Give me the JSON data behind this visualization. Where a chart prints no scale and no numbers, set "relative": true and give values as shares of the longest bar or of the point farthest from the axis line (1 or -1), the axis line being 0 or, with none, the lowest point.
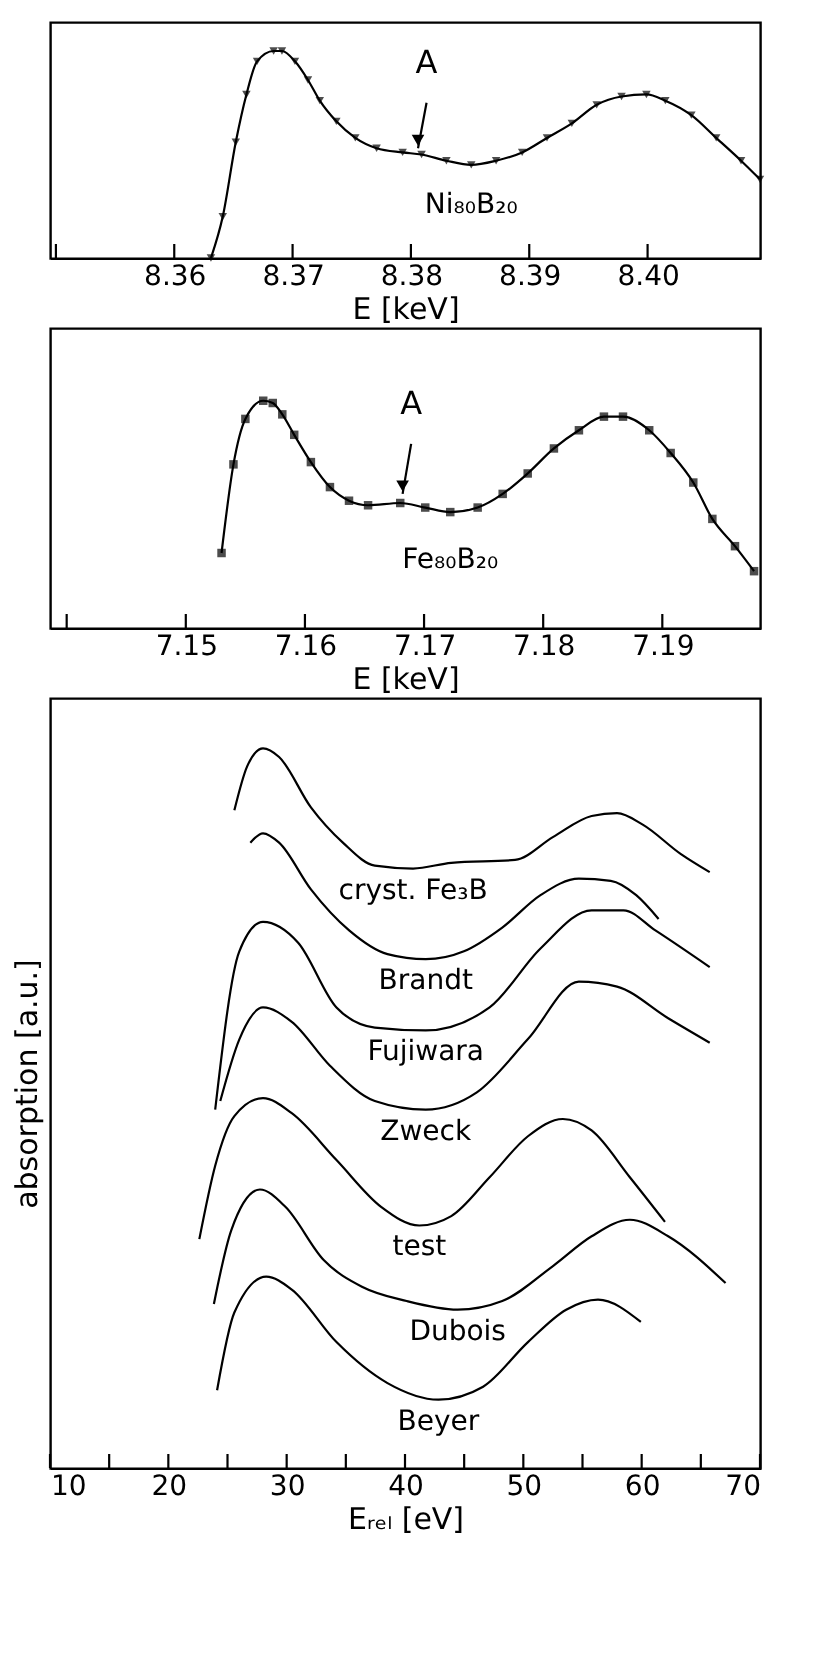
{
  "chart_data": [
    {
      "type": "line",
      "relative": true,
      "marker": "triangle",
      "grid": false,
      "legend": false,
      "xlabel": "E  [keV]",
      "xlim": [
        8.3495,
        8.4095
      ],
      "xticks": [
        {
          "value": 8.35,
          "label": null
        },
        8.36,
        8.37,
        8.38,
        8.39,
        {
          "value": 8.4,
          "label": "8.40"
        }
      ],
      "annotations": [
        {
          "text": "A",
          "x": 8.3806,
          "y": 0.53
        }
      ],
      "series": [
        {
          "name": "Ni₈₀B₂₀",
          "color": "#000000",
          "x": [
            8.3631,
            8.3641,
            8.3652,
            8.3661,
            8.367,
            8.3684,
            8.3691,
            8.3702,
            8.3713,
            8.3723,
            8.3737,
            8.3753,
            8.3771,
            8.3793,
            8.3809,
            8.383,
            8.3851,
            8.3872,
            8.3894,
            8.3915,
            8.3936,
            8.3957,
            8.3978,
            8.3999,
            8.4015,
            8.4037,
            8.4058,
            8.4079,
            8.4095
          ],
          "values": [
            0,
            0.2,
            0.56,
            0.79,
            0.95,
            1.0,
            1.0,
            0.95,
            0.86,
            0.76,
            0.66,
            0.58,
            0.53,
            0.51,
            0.5,
            0.47,
            0.45,
            0.47,
            0.51,
            0.58,
            0.65,
            0.74,
            0.78,
            0.79,
            0.76,
            0.69,
            0.58,
            0.47,
            0.38
          ]
        }
      ]
    },
    {
      "type": "line",
      "relative": true,
      "marker": "square",
      "grid": false,
      "legend": false,
      "xlabel": "E [keV]",
      "xlim": [
        7.1386,
        7.1982
      ],
      "xticks": [
        {
          "value": 7.14,
          "label": null
        },
        7.15,
        7.16,
        7.17,
        7.18,
        7.19
      ],
      "annotations": [
        {
          "text": "A",
          "x": 7.1682,
          "y": 0.59
        }
      ],
      "series": [
        {
          "name": "Fe₈₀B₂₀",
          "color": "#000000",
          "x": [
            7.153,
            7.154,
            7.155,
            7.1565,
            7.1573,
            7.1581,
            7.1591,
            7.1605,
            7.1621,
            7.1637,
            7.1653,
            7.168,
            7.1701,
            7.1722,
            7.1745,
            7.1766,
            7.1787,
            7.1809,
            7.183,
            7.1851,
            7.1867,
            7.1889,
            7.1907,
            7.1926,
            7.1942,
            7.1961,
            7.1977
          ],
          "values": [
            0.33,
            0.72,
            0.92,
            1.0,
            0.99,
            0.94,
            0.85,
            0.73,
            0.62,
            0.56,
            0.54,
            0.55,
            0.53,
            0.51,
            0.53,
            0.59,
            0.68,
            0.79,
            0.87,
            0.93,
            0.93,
            0.87,
            0.77,
            0.64,
            0.48,
            0.36,
            0.25
          ]
        }
      ]
    },
    {
      "type": "line",
      "relative": true,
      "marker": "none",
      "grid": false,
      "legend": false,
      "xlabel": "Eᵣₑₗ [eV]",
      "ylabel": "absorption   [a.u.]",
      "xlim": [
        10,
        70
      ],
      "xticks": [
        10,
        {
          "value": 15,
          "label": null
        },
        20,
        {
          "value": 25,
          "label": null
        },
        30,
        {
          "value": 35,
          "label": null
        },
        40,
        {
          "value": 45,
          "label": null
        },
        50,
        {
          "value": 55,
          "label": null
        },
        60,
        {
          "value": 65,
          "label": null
        },
        70
      ],
      "series": [
        {
          "name": "cryst. Fe₃B",
          "color": "#000000",
          "x": [
            25.58,
            26.66,
            28.0,
            29.36,
            32.05,
            34.75,
            37.45,
            40.68,
            43.91,
            49.3,
            52.53,
            55.77,
            57.92,
            60.09,
            63.32,
            65.75
          ],
          "values": [
            0.914,
            0.975,
            1.0,
            0.988,
            0.918,
            0.869,
            0.837,
            0.833,
            0.841,
            0.845,
            0.877,
            0.906,
            0.91,
            0.894,
            0.853,
            0.828
          ]
        },
        {
          "name": "Brandt",
          "color": "#000000",
          "x": [
            26.93,
            28.0,
            29.36,
            32.05,
            35.28,
            38.52,
            41.75,
            44.98,
            48.22,
            51.45,
            54.69,
            57.39,
            59.54,
            61.43
          ],
          "values": [
            0.869,
            0.882,
            0.869,
            0.804,
            0.747,
            0.714,
            0.707,
            0.718,
            0.751,
            0.796,
            0.819,
            0.816,
            0.796,
            0.763
          ]
        },
        {
          "name": "Fujiwara",
          "color": "#000000",
          "x": [
            23.96,
            26.0,
            28.0,
            30.97,
            34.21,
            37.45,
            41.75,
            47.15,
            51.45,
            55.77,
            58.47,
            61.16,
            65.75
          ],
          "values": [
            0.498,
            0.718,
            0.759,
            0.73,
            0.64,
            0.612,
            0.608,
            0.64,
            0.722,
            0.775,
            0.775,
            0.747,
            0.696
          ]
        },
        {
          "name": "Zweck",
          "color": "#000000",
          "x": [
            24.39,
            26.01,
            28.0,
            30.43,
            33.66,
            37.45,
            41.75,
            46.07,
            50.39,
            54.69,
            57.92,
            62.24,
            65.75
          ],
          "values": [
            0.51,
            0.596,
            0.64,
            0.62,
            0.559,
            0.51,
            0.498,
            0.522,
            0.596,
            0.676,
            0.669,
            0.625,
            0.591
          ]
        },
        {
          "name": "test",
          "color": "#000000",
          "x": [
            22.62,
            23.96,
            25.58,
            28.0,
            30.43,
            34.21,
            37.98,
            41.21,
            43.91,
            47.15,
            50.39,
            53.34,
            55.77,
            59.0,
            61.97
          ],
          "values": [
            0.318,
            0.42,
            0.489,
            0.514,
            0.493,
            0.428,
            0.363,
            0.337,
            0.35,
            0.404,
            0.461,
            0.485,
            0.469,
            0.404,
            0.342
          ]
        },
        {
          "name": "Dubois",
          "color": "#000000",
          "x": [
            23.85,
            25.31,
            27.74,
            29.89,
            33.13,
            36.36,
            40.14,
            44.45,
            48.22,
            52.53,
            55.77,
            59.0,
            62.24,
            67.09
          ],
          "values": [
            0.228,
            0.33,
            0.387,
            0.363,
            0.289,
            0.252,
            0.232,
            0.22,
            0.232,
            0.281,
            0.322,
            0.345,
            0.322,
            0.257
          ]
        },
        {
          "name": "Beyer",
          "color": "#000000",
          "x": [
            24.12,
            25.58,
            28.27,
            30.43,
            34.21,
            38.52,
            42.83,
            46.6,
            50.39,
            53.62,
            56.31,
            59.93
          ],
          "values": [
            0.108,
            0.216,
            0.266,
            0.248,
            0.175,
            0.118,
            0.095,
            0.113,
            0.175,
            0.22,
            0.234,
            0.203
          ]
        }
      ]
    }
  ]
}
